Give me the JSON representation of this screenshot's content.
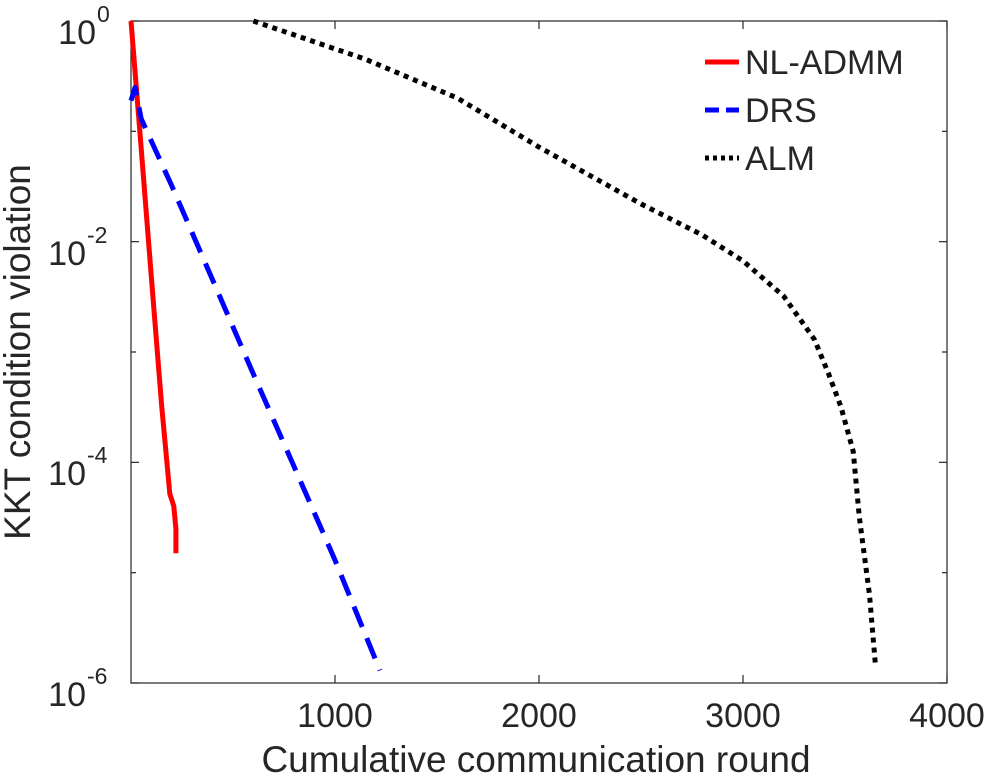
{
  "chart_data": {
    "type": "line",
    "title": "",
    "xlabel": "Cumulative communication round",
    "ylabel": "KKT condition violation",
    "xlim": [
      0,
      4000
    ],
    "ylim_exponent": [
      -6,
      0
    ],
    "yscale": "log",
    "grid": false,
    "legend_position": "top-right",
    "x_ticks": [
      "1000",
      "2000",
      "3000",
      "4000"
    ],
    "y_ticks": [
      {
        "base": "10",
        "exp": "0",
        "value": 1
      },
      {
        "base": "10",
        "exp": "-2",
        "value": 0.01
      },
      {
        "base": "10",
        "exp": "-4",
        "value": 0.0001
      },
      {
        "base": "10",
        "exp": "-6",
        "value": 1e-06
      }
    ],
    "series": [
      {
        "name": "NL-ADMM",
        "color": "#ff0000",
        "style": "solid",
        "x": [
          0,
          50,
          100,
          150,
          190,
          210,
          220,
          220
        ],
        "y": [
          1.0,
          0.07,
          0.0047,
          0.00033,
          5.2e-05,
          4e-05,
          2.5e-05,
          1.5e-05
        ]
      },
      {
        "name": "DRS",
        "color": "#0000ff",
        "style": "dashed",
        "x": [
          0,
          20,
          50,
          200,
          400,
          600,
          800,
          1000,
          1220
        ],
        "y": [
          0.19,
          0.25,
          0.13,
          0.032,
          0.0045,
          0.00063,
          9.1e-05,
          1.3e-05,
          1.3e-06
        ]
      },
      {
        "name": "ALM",
        "color": "#000000",
        "style": "dotted",
        "x": [
          600,
          1150,
          1600,
          2000,
          2500,
          2800,
          3000,
          3200,
          3350,
          3420,
          3480,
          3540,
          3570,
          3620,
          3650
        ],
        "y": [
          1.0,
          0.45,
          0.2,
          0.072,
          0.022,
          0.0115,
          0.0067,
          0.0032,
          0.0013,
          0.00063,
          0.00032,
          0.000126,
          3.2e-05,
          6.3e-06,
          1.4e-06
        ]
      }
    ]
  }
}
